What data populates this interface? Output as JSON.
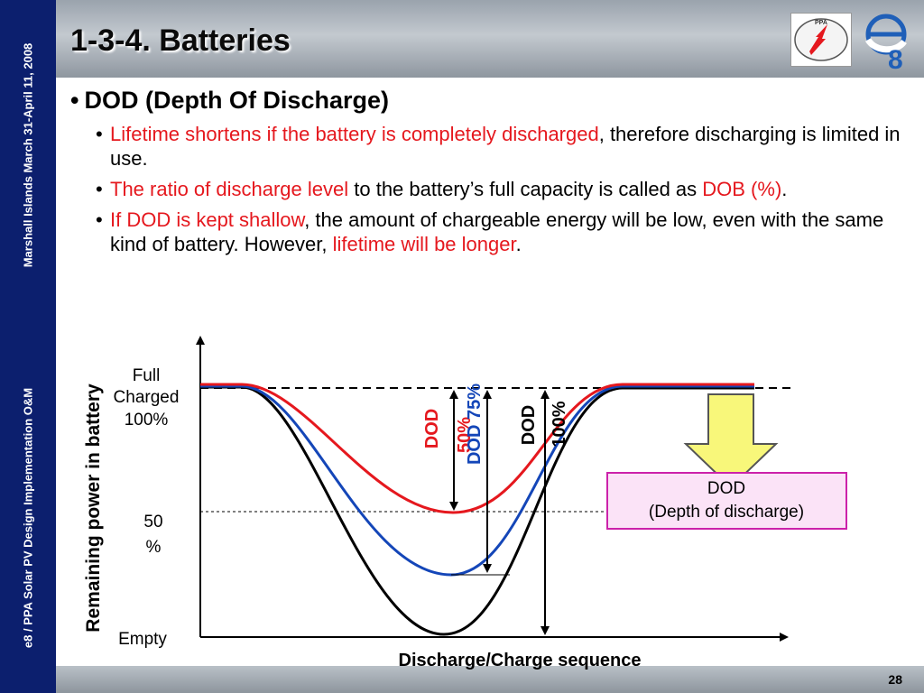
{
  "sidebar": {
    "top_text": "Marshall Islands March 31-April 11, 2008",
    "bottom_text": "e8 / PPA Solar PV Design Implementation O&M"
  },
  "title": "1-3-4. Batteries",
  "bullets": {
    "main": "DOD (Depth Of Discharge)",
    "sub1": {
      "red": "Lifetime shortens if the battery is completely discharged",
      "rest": ", therefore discharging is limited in use."
    },
    "sub2": {
      "red1": "The ratio of discharge level",
      "mid": " to the battery’s full capacity is called as ",
      "red2": "DOB (%)",
      "end": "."
    },
    "sub3": {
      "red1": "If DOD is kept shallow",
      "mid": ", the amount of chargeable energy will be low, even with the same kind of battery.  However, ",
      "red2": "lifetime will be longer",
      "end": "."
    }
  },
  "diagram": {
    "ylabel": "Remaining power in battery",
    "xlabel": "Discharge/Charge sequence",
    "level_full_1": "Full",
    "level_full_2": "Charged",
    "level_full_3": "100%",
    "level_half_1": "50",
    "level_half_2": "%",
    "level_empty": "Empty",
    "dod50_1": "DOD",
    "dod50_2": "50%",
    "dod75": "DOD 75%",
    "dod100_1": "DOD",
    "dod100_2": "100%",
    "legend_1": "DOD",
    "legend_2": "(Depth of discharge)",
    "colors": {
      "dod50": "#e5181e",
      "dod75": "#1446b8",
      "dod100": "#000000",
      "legend_bg": "#fbe3f7",
      "legend_border": "#cc22aa",
      "arrow_fill": "#f8f77a"
    }
  },
  "page_number": "28"
}
